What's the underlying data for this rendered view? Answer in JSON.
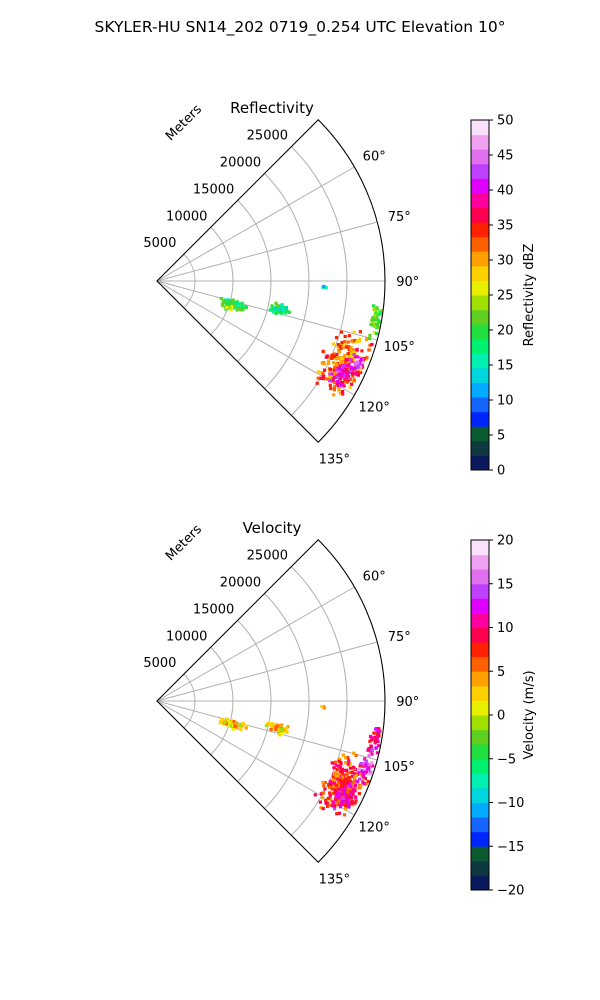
{
  "suptitle": "SKYLER-HU  SN14_202  0719_0.254 UTC Elevation 10°",
  "chart_data": [
    {
      "type": "heatmap",
      "projection": "polar-sector",
      "title": "Reflectivity",
      "range_label": "Meters",
      "range_ticks": [
        5000,
        10000,
        15000,
        20000,
        25000
      ],
      "range_tick_labels": [
        "5000",
        "10000",
        "15000",
        "20000",
        "25000"
      ],
      "range_max": 30000,
      "azimuth_range_deg": [
        45,
        135
      ],
      "azimuth_ticks": [
        60,
        75,
        90,
        105,
        120,
        135
      ],
      "azimuth_tick_labels": [
        "60°",
        "75°",
        "90°",
        "105°",
        "120°",
        "135°"
      ],
      "grid": true,
      "colorbar": {
        "label": "Reflectivity dBZ",
        "min": 0,
        "max": 50,
        "ticks": [
          0,
          5,
          10,
          15,
          20,
          25,
          30,
          35,
          40,
          45,
          50
        ],
        "tick_labels": [
          "0",
          "5",
          "10",
          "15",
          "20",
          "25",
          "30",
          "35",
          "40",
          "45",
          "50"
        ],
        "colors": [
          "#0a1a5c",
          "#0d3a40",
          "#0c5a30",
          "#0026ff",
          "#1466ff",
          "#00aaff",
          "#00d5e0",
          "#00f0b0",
          "#00f070",
          "#20e040",
          "#60d020",
          "#a0e000",
          "#e8f000",
          "#ffd000",
          "#ffa000",
          "#ff6000",
          "#ff2000",
          "#ff0050",
          "#ff00a0",
          "#e000ff",
          "#c040ff",
          "#e070f0",
          "#f0a0f0",
          "#fbe0fb"
        ]
      },
      "echoes": [
        {
          "az_deg": 114,
          "range_m": 27000,
          "az_span_deg": 14,
          "range_span_m": 4500,
          "value": 32
        },
        {
          "az_deg": 116,
          "range_m": 27500,
          "az_span_deg": 7,
          "range_span_m": 2500,
          "value": 40
        },
        {
          "az_deg": 112,
          "range_m": 28500,
          "az_span_deg": 4,
          "range_span_m": 1500,
          "value": 44
        },
        {
          "az_deg": 100,
          "range_m": 29200,
          "az_span_deg": 8,
          "range_span_m": 1500,
          "value": 21
        },
        {
          "az_deg": 103,
          "range_m": 16500,
          "az_span_deg": 4,
          "range_span_m": 2500,
          "value": 17
        },
        {
          "az_deg": 107,
          "range_m": 10500,
          "az_span_deg": 5,
          "range_span_m": 3000,
          "value": 19
        },
        {
          "az_deg": 110,
          "range_m": 10000,
          "az_span_deg": 3,
          "range_span_m": 1200,
          "value": 22
        },
        {
          "az_deg": 92,
          "range_m": 22000,
          "az_span_deg": 1,
          "range_span_m": 1000,
          "value": 14
        }
      ]
    },
    {
      "type": "heatmap",
      "projection": "polar-sector",
      "title": "Velocity",
      "range_label": "Meters",
      "range_ticks": [
        5000,
        10000,
        15000,
        20000,
        25000
      ],
      "range_tick_labels": [
        "5000",
        "10000",
        "15000",
        "20000",
        "25000"
      ],
      "range_max": 30000,
      "azimuth_range_deg": [
        45,
        135
      ],
      "azimuth_ticks": [
        60,
        75,
        90,
        105,
        120,
        135
      ],
      "azimuth_tick_labels": [
        "60°",
        "75°",
        "90°",
        "105°",
        "120°",
        "135°"
      ],
      "grid": true,
      "colorbar": {
        "label": "Velocity (m/s)",
        "min": -20,
        "max": 20,
        "ticks": [
          -20,
          -15,
          -10,
          -5,
          0,
          5,
          10,
          15,
          20
        ],
        "tick_labels": [
          "−20",
          "−15",
          "−10",
          "−5",
          "0",
          "5",
          "10",
          "15",
          "20"
        ],
        "colors": [
          "#0a1a5c",
          "#0d3a40",
          "#0c5a30",
          "#0026ff",
          "#1466ff",
          "#00aaff",
          "#00d5e0",
          "#00f0b0",
          "#00f070",
          "#20e040",
          "#60d020",
          "#a0e000",
          "#e8f000",
          "#ffd000",
          "#ffa000",
          "#ff6000",
          "#ff2000",
          "#ff0050",
          "#ff00a0",
          "#e000ff",
          "#c040ff",
          "#e070f0",
          "#f0a0f0",
          "#fbe0fb"
        ]
      },
      "echoes": [
        {
          "az_deg": 114,
          "range_m": 27000,
          "az_span_deg": 14,
          "range_span_m": 4500,
          "value": 7
        },
        {
          "az_deg": 117,
          "range_m": 27800,
          "az_span_deg": 7,
          "range_span_m": 2500,
          "value": 10
        },
        {
          "az_deg": 108,
          "range_m": 29000,
          "az_span_deg": 6,
          "range_span_m": 1500,
          "value": 14
        },
        {
          "az_deg": 100,
          "range_m": 29200,
          "az_span_deg": 8,
          "range_span_m": 1500,
          "value": 11
        },
        {
          "az_deg": 103,
          "range_m": 16500,
          "az_span_deg": 4,
          "range_span_m": 2500,
          "value": 3
        },
        {
          "az_deg": 107,
          "range_m": 10500,
          "az_span_deg": 5,
          "range_span_m": 3000,
          "value": 2
        },
        {
          "az_deg": 92,
          "range_m": 22000,
          "az_span_deg": 1,
          "range_span_m": 1000,
          "value": 6
        }
      ]
    }
  ]
}
